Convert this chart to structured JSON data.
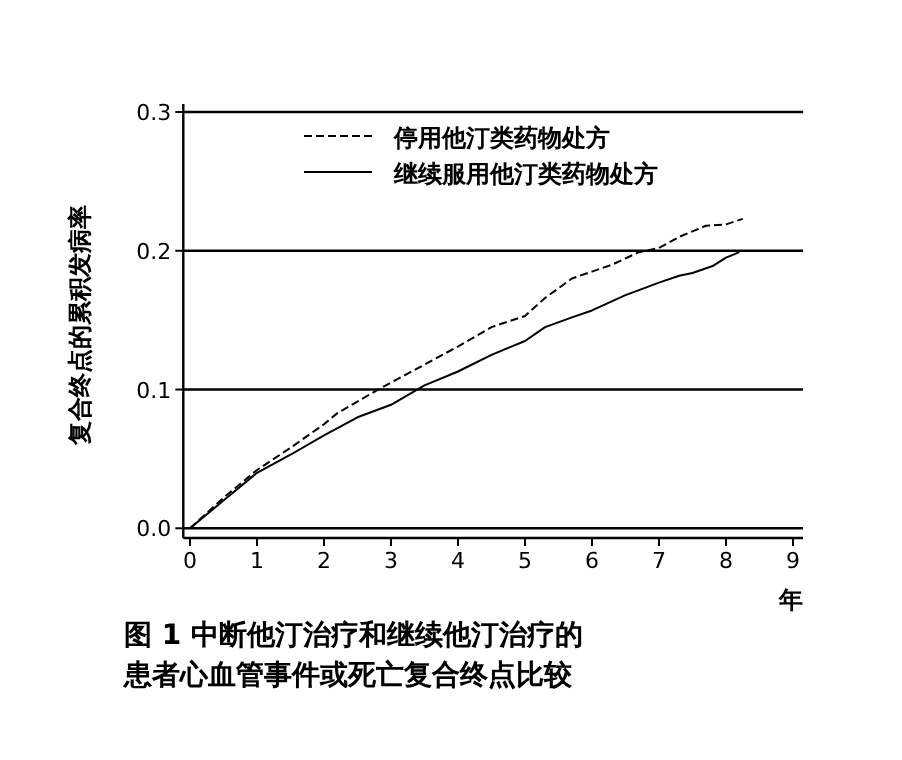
{
  "chart_data": {
    "type": "line",
    "title": "图 1 中断他汀治疗和继续他汀治疗的患者心血管事件或死亡复合终点比较",
    "xlabel": "年",
    "ylabel": "复合终点的累积发病率",
    "xlim": [
      -0.1,
      9.15
    ],
    "ylim": [
      -0.007,
      0.3
    ],
    "xticks": [
      0,
      1,
      2,
      3,
      4,
      5,
      6,
      7,
      8,
      9
    ],
    "yticks": [
      {
        "value": 0,
        "label": "0.0"
      },
      {
        "value": 0.1,
        "label": "0.1"
      },
      {
        "value": 0.2,
        "label": "0.2"
      },
      {
        "value": 0.3,
        "label": "0.3"
      }
    ],
    "grid": "y",
    "legend": "top",
    "marker": "none",
    "series": [
      {
        "name": "停用他汀类药物处方",
        "color": "#000000",
        "line_style": "dashed",
        "x": [
          0,
          0.5,
          1,
          1.5,
          2,
          2.2,
          2.7,
          3,
          3.5,
          4,
          4.5,
          5,
          5.3,
          5.7,
          6,
          6.3,
          6.7,
          7,
          7.3,
          7.7,
          8,
          8.25
        ],
        "values": [
          0,
          0.022,
          0.042,
          0.058,
          0.075,
          0.083,
          0.097,
          0.105,
          0.118,
          0.131,
          0.145,
          0.153,
          0.166,
          0.18,
          0.185,
          0.19,
          0.199,
          0.202,
          0.21,
          0.218,
          0.219,
          0.223
        ]
      },
      {
        "name": "继续服用他汀类药物处方",
        "color": "#000000",
        "line_style": "solid",
        "x": [
          0,
          0.5,
          1,
          1.5,
          2,
          2.5,
          3,
          3.5,
          4,
          4.5,
          5,
          5.3,
          5.7,
          6,
          6.5,
          7,
          7.3,
          7.5,
          7.8,
          8,
          8.2
        ],
        "values": [
          0,
          0.02,
          0.04,
          0.053,
          0.067,
          0.08,
          0.089,
          0.103,
          0.113,
          0.125,
          0.135,
          0.145,
          0.152,
          0.157,
          0.168,
          0.177,
          0.182,
          0.184,
          0.189,
          0.195,
          0.199
        ]
      }
    ]
  }
}
